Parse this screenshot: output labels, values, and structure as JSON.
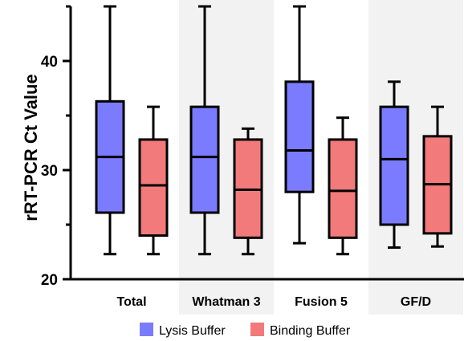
{
  "chart_data": {
    "type": "boxplot",
    "ylabel": "rRT-PCR Ct Value",
    "ylim": [
      20,
      45
    ],
    "y_ticks": [
      20,
      30,
      40
    ],
    "categories": [
      "Total",
      "Whatman 3",
      "Fusion 5",
      "GF/D"
    ],
    "shaded_categories": [
      "Whatman 3",
      "GF/D"
    ],
    "shade_color": "#f2f2f2",
    "series": [
      {
        "name": "Lysis Buffer",
        "color": "#7b7bff",
        "boxes": [
          {
            "min": 22.3,
            "q1": 26.1,
            "median": 31.2,
            "q3": 36.3,
            "max": 45.0
          },
          {
            "min": 22.3,
            "q1": 26.1,
            "median": 31.2,
            "q3": 35.8,
            "max": 45.0
          },
          {
            "min": 23.3,
            "q1": 28.0,
            "median": 31.8,
            "q3": 38.1,
            "max": 45.0
          },
          {
            "min": 22.9,
            "q1": 25.0,
            "median": 31.0,
            "q3": 35.8,
            "max": 38.1
          }
        ]
      },
      {
        "name": "Binding Buffer",
        "color": "#f37a7a",
        "boxes": [
          {
            "min": 22.3,
            "q1": 24.0,
            "median": 28.6,
            "q3": 32.8,
            "max": 35.8
          },
          {
            "min": 22.3,
            "q1": 23.8,
            "median": 28.2,
            "q3": 32.8,
            "max": 33.8
          },
          {
            "min": 22.3,
            "q1": 23.8,
            "median": 28.1,
            "q3": 32.8,
            "max": 34.8
          },
          {
            "min": 23.0,
            "q1": 24.2,
            "median": 28.7,
            "q3": 33.1,
            "max": 35.8
          }
        ]
      }
    ],
    "legend": {
      "position": "bottom"
    }
  }
}
